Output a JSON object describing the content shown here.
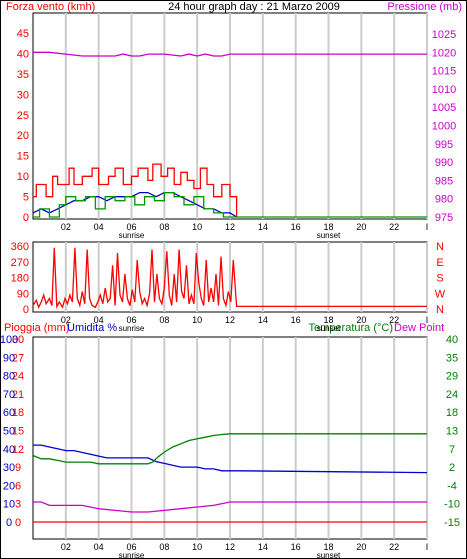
{
  "header": {
    "left_title": "Forza vento (kmh)",
    "center_title": "24 hour graph day : 21 Marzo 2009",
    "right_title": "Pressione (mb)"
  },
  "colors": {
    "wind": "#ff0000",
    "wind_avg": "#0000cc",
    "wind_gust": "#009900",
    "pressure": "#cc00cc",
    "direction": "#ff0000",
    "rain": "#ff0000",
    "humidity": "#0000cc",
    "temperature": "#008000",
    "dewpoint": "#cc00cc",
    "grid_major": "#cccccc",
    "frame": "#000000"
  },
  "x_axis": {
    "ticks": [
      "02",
      "04",
      "06",
      "08",
      "10",
      "12",
      "14",
      "16",
      "18",
      "20",
      "22",
      "I"
    ],
    "sunrise_label": "sunrise",
    "sunset_label": "sunset"
  },
  "chart_data": [
    {
      "type": "line",
      "name": "wind-pressure",
      "x_unit": "hour",
      "xlim": [
        0,
        24
      ],
      "left_axis": {
        "label": "Forza vento (kmh)",
        "ticks": [
          "0",
          "5",
          "10",
          "15",
          "20",
          "25",
          "30",
          "35",
          "40",
          "45"
        ],
        "lim": [
          0,
          45
        ]
      },
      "right_axis": {
        "label": "Pressione (mb)",
        "ticks": [
          "975",
          "980",
          "985",
          "990",
          "995",
          "1000",
          "1005",
          "1010",
          "1015",
          "1020",
          "1025"
        ],
        "lim": [
          975,
          1025
        ]
      },
      "series": [
        {
          "role": "wind",
          "axis": "left",
          "x": [
            0,
            0.2,
            0.2,
            0.8,
            0.8,
            1.2,
            1.2,
            1.5,
            1.5,
            2.2,
            2.2,
            2.5,
            2.5,
            3.0,
            3.0,
            3.6,
            3.6,
            4.0,
            4.0,
            4.6,
            4.6,
            5.0,
            5.0,
            5.5,
            5.5,
            6.0,
            6.0,
            6.4,
            6.4,
            7.0,
            7.0,
            7.3,
            7.3,
            7.8,
            7.8,
            8.2,
            8.2,
            8.6,
            8.6,
            9.0,
            9.0,
            9.4,
            9.4,
            9.8,
            9.8,
            10.2,
            10.2,
            10.6,
            10.6,
            11.0,
            11.0,
            11.5,
            11.5,
            12.0,
            12.0,
            12.4,
            12.4
          ],
          "y": [
            5,
            5,
            8,
            8,
            5,
            5,
            10,
            10,
            8,
            8,
            12,
            12,
            8,
            8,
            10,
            10,
            12,
            12,
            8,
            8,
            10,
            10,
            12,
            12,
            8,
            8,
            10,
            10,
            12,
            12,
            9,
            9,
            13,
            13,
            10,
            10,
            12,
            12,
            8,
            8,
            11,
            11,
            9,
            9,
            7,
            7,
            12,
            12,
            8,
            8,
            5,
            5,
            8,
            8,
            5,
            5,
            0
          ]
        },
        {
          "role": "wind_avg",
          "axis": "left",
          "x": [
            0,
            0.5,
            1.0,
            1.5,
            2.0,
            2.5,
            3.0,
            3.5,
            4.0,
            4.5,
            5.0,
            5.5,
            6.0,
            6.5,
            7.0,
            7.5,
            8.0,
            8.5,
            9.0,
            9.5,
            10.0,
            10.5,
            11.0,
            11.5,
            12.0,
            12.4
          ],
          "y": [
            1,
            2,
            1,
            2,
            3,
            4,
            4,
            5,
            5,
            4,
            5,
            5,
            5,
            6,
            6,
            5,
            6,
            6,
            5,
            4,
            3,
            2,
            2,
            1,
            1,
            0
          ]
        },
        {
          "role": "wind_gust",
          "axis": "left",
          "x": [
            0,
            0.4,
            0.4,
            1.0,
            1.0,
            1.6,
            1.6,
            2.0,
            2.0,
            2.6,
            2.6,
            3.2,
            3.2,
            3.8,
            3.8,
            4.4,
            4.4,
            5.0,
            5.0,
            5.6,
            5.6,
            6.2,
            6.2,
            6.8,
            6.8,
            7.4,
            7.4,
            8.0,
            8.0,
            8.6,
            8.6,
            9.2,
            9.2,
            9.8,
            9.8,
            10.4,
            10.4,
            11.0,
            11.0,
            11.6,
            11.6,
            12.2,
            12.2,
            24
          ],
          "y": [
            0,
            0,
            2,
            2,
            0,
            0,
            3,
            3,
            5,
            5,
            4,
            4,
            5,
            5,
            2,
            2,
            5,
            5,
            4,
            4,
            5,
            5,
            3,
            3,
            5,
            5,
            4,
            4,
            6,
            6,
            5,
            5,
            3,
            3,
            5,
            5,
            2,
            2,
            1,
            1,
            0,
            0,
            0,
            0
          ]
        },
        {
          "role": "pressure",
          "axis": "right",
          "x": [
            0,
            1,
            2,
            3,
            4,
            5,
            5.5,
            6,
            6.5,
            7,
            8,
            9,
            9.5,
            10,
            10.5,
            11,
            11.5,
            12,
            12.5,
            24
          ],
          "y": [
            1020,
            1020,
            1019.5,
            1019,
            1019,
            1019,
            1019.5,
            1019,
            1019,
            1019.5,
            1019.5,
            1019,
            1019.5,
            1019,
            1019.5,
            1019,
            1019,
            1019.5,
            1019.5,
            1019.5
          ]
        }
      ]
    },
    {
      "type": "line",
      "name": "wind-direction",
      "x_unit": "hour",
      "xlim": [
        0,
        24
      ],
      "left_axis": {
        "ticks": [
          "0",
          "90",
          "180",
          "270",
          "360"
        ],
        "lim": [
          0,
          360
        ]
      },
      "right_axis": {
        "ticks": [
          "N",
          "W",
          "S",
          "E",
          "N"
        ]
      },
      "series": [
        {
          "role": "direction",
          "axis": "left",
          "x": [
            0,
            0.2,
            0.35,
            0.5,
            0.65,
            0.8,
            1.0,
            1.15,
            1.3,
            1.45,
            1.6,
            1.8,
            1.95,
            2.1,
            2.25,
            2.4,
            2.55,
            2.7,
            2.85,
            3.0,
            3.15,
            3.3,
            3.45,
            3.6,
            3.8,
            3.95,
            4.1,
            4.25,
            4.4,
            4.55,
            4.7,
            4.85,
            5.0,
            5.15,
            5.3,
            5.45,
            5.6,
            5.75,
            5.9,
            6.05,
            6.2,
            6.35,
            6.5,
            6.65,
            6.8,
            6.95,
            7.1,
            7.25,
            7.4,
            7.55,
            7.7,
            7.85,
            8.0,
            8.15,
            8.3,
            8.45,
            8.6,
            8.75,
            8.9,
            9.05,
            9.2,
            9.35,
            9.5,
            9.65,
            9.8,
            9.95,
            10.1,
            10.25,
            10.4,
            10.55,
            10.7,
            10.85,
            11.0,
            11.15,
            11.3,
            11.45,
            11.6,
            11.75,
            11.9,
            12.05,
            12.2,
            12.4,
            24
          ],
          "y": [
            20,
            50,
            10,
            40,
            80,
            30,
            60,
            20,
            350,
            15,
            40,
            10,
            60,
            30,
            80,
            40,
            350,
            60,
            20,
            100,
            30,
            340,
            60,
            20,
            10,
            40,
            80,
            30,
            120,
            40,
            60,
            250,
            20,
            320,
            80,
            40,
            200,
            60,
            20,
            110,
            40,
            280,
            100,
            30,
            60,
            20,
            90,
            340,
            40,
            200,
            60,
            30,
            120,
            330,
            80,
            20,
            200,
            40,
            340,
            100,
            60,
            250,
            30,
            80,
            30,
            320,
            150,
            60,
            20,
            280,
            40,
            120,
            40,
            200,
            20,
            300,
            60,
            20,
            100,
            40,
            280,
            15,
            15
          ]
        }
      ]
    },
    {
      "type": "line",
      "name": "rain-humidity-temperature-dewpoint",
      "x_unit": "hour",
      "xlim": [
        0,
        24
      ],
      "left_axis_rain": {
        "label": "Pioggia (mm)",
        "ticks": [
          "0",
          "3",
          "6",
          "9",
          "12",
          "15",
          "18",
          "21",
          "24",
          "27",
          "30"
        ],
        "lim": [
          0,
          30
        ]
      },
      "left_axis_humidity": {
        "label": "Umidita %",
        "ticks": [
          "0",
          "10",
          "20",
          "30",
          "40",
          "50",
          "60",
          "70",
          "80",
          "90",
          "100"
        ],
        "lim": [
          0,
          100
        ]
      },
      "right_axis": {
        "label_temperature": "Temperatura (°C)",
        "label_dewpoint": "Dew Point",
        "ticks": [
          "-15",
          "-10",
          "-4",
          "2",
          "7",
          "13",
          "18",
          "24",
          "29",
          "35",
          "40"
        ],
        "lim": [
          -15,
          40
        ]
      },
      "series": [
        {
          "role": "rain",
          "axis": "left_rain",
          "x": [
            0,
            24
          ],
          "y": [
            0,
            0
          ]
        },
        {
          "role": "humidity",
          "axis": "left_humidity",
          "x": [
            0,
            0.5,
            1,
            1.5,
            2,
            2.5,
            3,
            3.5,
            4,
            4.5,
            5,
            5.5,
            6,
            6.5,
            7,
            7.5,
            8,
            8.5,
            9,
            9.5,
            10,
            10.5,
            11,
            11.5,
            12,
            12.5,
            24
          ],
          "y": [
            42,
            42,
            41,
            40,
            39,
            39,
            38,
            37,
            36,
            35,
            35,
            35,
            35,
            35,
            35,
            33,
            32,
            31,
            30,
            30,
            30,
            29,
            29,
            28,
            28,
            28,
            27
          ]
        },
        {
          "role": "temperature",
          "axis": "right",
          "x": [
            0,
            0.5,
            1,
            1.5,
            2,
            2.5,
            3,
            3.5,
            4,
            4.5,
            5,
            5.5,
            6,
            6.5,
            7,
            7.3,
            7.6,
            8,
            8.5,
            9,
            9.5,
            10,
            10.5,
            11,
            11.5,
            12,
            12.5,
            24
          ],
          "y": [
            5,
            4,
            4,
            3.5,
            3,
            3,
            3,
            3,
            2.5,
            2.5,
            2.5,
            2.5,
            2.5,
            2.5,
            2.5,
            3,
            4.5,
            6,
            7.5,
            8.5,
            9.5,
            10,
            10.5,
            11,
            11.3,
            11.5,
            11.5,
            11.5
          ]
        },
        {
          "role": "dewpoint",
          "axis": "right",
          "x": [
            0,
            0.5,
            1,
            2,
            3,
            4,
            5,
            6,
            7,
            8,
            9,
            10,
            11,
            12,
            12.5,
            24
          ],
          "y": [
            -9,
            -9,
            -10,
            -10,
            -10,
            -11,
            -11.5,
            -12,
            -12,
            -11.5,
            -11,
            -10.5,
            -10,
            -9,
            -9,
            -9
          ]
        }
      ]
    }
  ],
  "panel3_headers": {
    "rain": "Pioggia (mm)",
    "humidity": "Umidita %",
    "temperature": "Temperatura (°C)",
    "dewpoint": "Dew Point"
  }
}
